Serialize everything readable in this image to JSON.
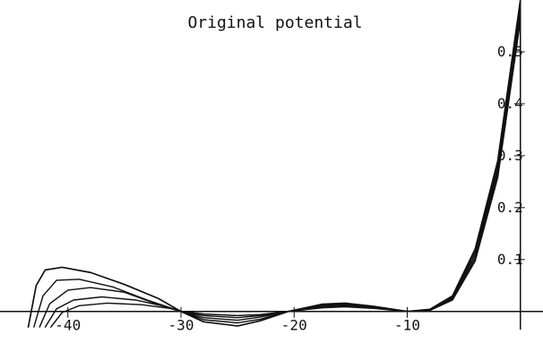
{
  "chart_data": {
    "type": "line",
    "title": "Original potential",
    "xlabel": "",
    "ylabel": "",
    "xlim": [
      -46,
      2
    ],
    "ylim": [
      -0.035,
      0.6
    ],
    "grid": false,
    "x_ticks": [
      -40,
      -30,
      -20,
      -10
    ],
    "x_tick_labels": [
      "-40",
      "-30",
      "-20",
      "-10"
    ],
    "y_ticks": [
      0.1,
      0.2,
      0.3,
      0.4,
      0.5
    ],
    "y_tick_labels": [
      "0.1",
      "0.2",
      "0.3",
      "0.4",
      "0.5"
    ],
    "colors": {
      "line": "#111111",
      "axis": "#111111",
      "background": "#ffffff"
    },
    "series": [
      {
        "points": [
          [
            -43.5,
            -0.03
          ],
          [
            -42.8,
            0.05
          ],
          [
            -42.0,
            0.08
          ],
          [
            -40.5,
            0.085
          ],
          [
            -38.0,
            0.075
          ],
          [
            -35.0,
            0.052
          ],
          [
            -32.0,
            0.025
          ],
          [
            -30.0,
            0.0
          ],
          [
            -28.0,
            -0.02
          ],
          [
            -25.0,
            -0.028
          ],
          [
            -23.0,
            -0.018
          ],
          [
            -20.5,
            0.0
          ],
          [
            -17.5,
            0.014
          ],
          [
            -15.5,
            0.016
          ],
          [
            -13.0,
            0.01
          ],
          [
            -10.0,
            0.0
          ],
          [
            -8.0,
            0.004
          ],
          [
            -6.0,
            0.03
          ],
          [
            -4.0,
            0.12
          ],
          [
            -2.0,
            0.29
          ],
          [
            0.0,
            0.6
          ]
        ]
      },
      {
        "points": [
          [
            -43.0,
            -0.03
          ],
          [
            -42.2,
            0.03
          ],
          [
            -41.0,
            0.06
          ],
          [
            -39.0,
            0.062
          ],
          [
            -36.0,
            0.047
          ],
          [
            -33.0,
            0.022
          ],
          [
            -30.0,
            0.0
          ],
          [
            -28.0,
            -0.016
          ],
          [
            -25.0,
            -0.022
          ],
          [
            -23.0,
            -0.015
          ],
          [
            -20.5,
            0.0
          ],
          [
            -17.5,
            0.012
          ],
          [
            -15.5,
            0.014
          ],
          [
            -13.0,
            0.009
          ],
          [
            -10.0,
            0.0
          ],
          [
            -8.0,
            0.003
          ],
          [
            -6.0,
            0.028
          ],
          [
            -4.0,
            0.114
          ],
          [
            -2.0,
            0.28
          ],
          [
            0.0,
            0.59
          ]
        ]
      },
      {
        "points": [
          [
            -42.5,
            -0.03
          ],
          [
            -41.6,
            0.015
          ],
          [
            -40.0,
            0.041
          ],
          [
            -38.0,
            0.046
          ],
          [
            -35.0,
            0.037
          ],
          [
            -32.5,
            0.017
          ],
          [
            -30.0,
            0.0
          ],
          [
            -28.0,
            -0.012
          ],
          [
            -25.0,
            -0.017
          ],
          [
            -23.0,
            -0.011
          ],
          [
            -20.5,
            0.0
          ],
          [
            -17.5,
            0.01
          ],
          [
            -15.5,
            0.012
          ],
          [
            -13.0,
            0.008
          ],
          [
            -10.0,
            0.0
          ],
          [
            -8.0,
            0.002
          ],
          [
            -6.0,
            0.026
          ],
          [
            -4.0,
            0.108
          ],
          [
            -2.0,
            0.272
          ],
          [
            0.0,
            0.58
          ]
        ]
      },
      {
        "points": [
          [
            -42.0,
            -0.03
          ],
          [
            -41.0,
            0.005
          ],
          [
            -39.5,
            0.022
          ],
          [
            -37.0,
            0.028
          ],
          [
            -34.0,
            0.022
          ],
          [
            -31.5,
            0.01
          ],
          [
            -30.0,
            0.0
          ],
          [
            -28.0,
            -0.008
          ],
          [
            -25.0,
            -0.012
          ],
          [
            -23.0,
            -0.008
          ],
          [
            -20.5,
            0.0
          ],
          [
            -17.5,
            0.008
          ],
          [
            -15.5,
            0.01
          ],
          [
            -13.0,
            0.007
          ],
          [
            -10.0,
            0.0
          ],
          [
            -8.0,
            0.002
          ],
          [
            -6.0,
            0.024
          ],
          [
            -4.0,
            0.102
          ],
          [
            -2.0,
            0.265
          ],
          [
            0.0,
            0.57
          ]
        ]
      },
      {
        "points": [
          [
            -41.5,
            -0.03
          ],
          [
            -40.5,
            -0.002
          ],
          [
            -39.0,
            0.011
          ],
          [
            -36.5,
            0.016
          ],
          [
            -33.5,
            0.013
          ],
          [
            -31.0,
            0.006
          ],
          [
            -30.0,
            0.0
          ],
          [
            -28.0,
            -0.005
          ],
          [
            -25.0,
            -0.008
          ],
          [
            -23.0,
            -0.006
          ],
          [
            -20.5,
            0.0
          ],
          [
            -17.5,
            0.007
          ],
          [
            -15.5,
            0.009
          ],
          [
            -13.0,
            0.006
          ],
          [
            -10.0,
            0.0
          ],
          [
            -8.0,
            0.002
          ],
          [
            -6.0,
            0.022
          ],
          [
            -4.0,
            0.097
          ],
          [
            -2.0,
            0.258
          ],
          [
            0.0,
            0.56
          ]
        ]
      }
    ]
  }
}
